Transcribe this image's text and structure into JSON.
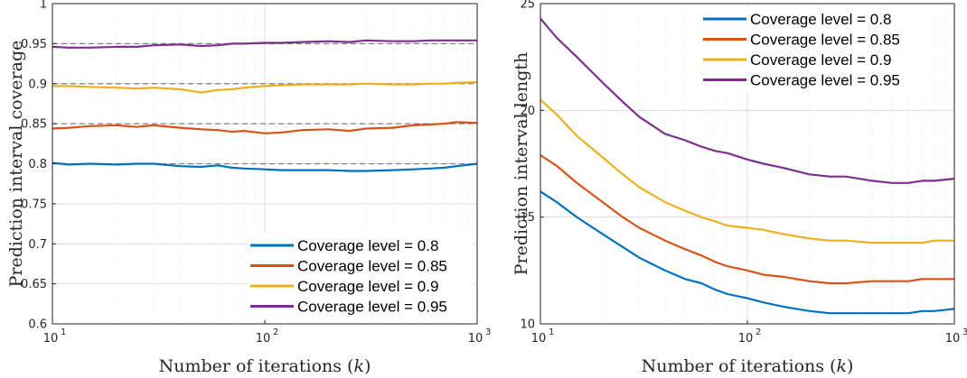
{
  "colors": {
    "blue": "#0072BD",
    "orange": "#D95319",
    "yellow": "#EDB120",
    "purple": "#7E2F8E",
    "target": "#808080"
  },
  "chart_data": [
    {
      "type": "line",
      "xlabel": "Number of iterations (k)",
      "xlabel_parts": {
        "main": "Number of iterations",
        "var": "k"
      },
      "ylabel": "Prediction interval coverage",
      "xscale": "log",
      "xlim": [
        10,
        1000
      ],
      "ylim": [
        0.6,
        1.0
      ],
      "xticks": [
        {
          "value": 10,
          "base": "10",
          "exp": "1"
        },
        {
          "value": 100,
          "base": "10",
          "exp": "2"
        },
        {
          "value": 1000,
          "base": "10",
          "exp": "3"
        }
      ],
      "yticks": [
        {
          "value": 0.6,
          "label": "0.6"
        },
        {
          "value": 0.65,
          "label": "0.65"
        },
        {
          "value": 0.7,
          "label": "0.7"
        },
        {
          "value": 0.75,
          "label": "0.75"
        },
        {
          "value": 0.8,
          "label": "0.8"
        },
        {
          "value": 0.85,
          "label": "0.85"
        },
        {
          "value": 0.9,
          "label": "0.9"
        },
        {
          "value": 0.95,
          "label": "0.95"
        },
        {
          "value": 1.0,
          "label": "1"
        }
      ],
      "grid": true,
      "legend_position": "bottom-right",
      "reference_lines": [
        0.8,
        0.85,
        0.9,
        0.95
      ],
      "series": [
        {
          "name": "Coverage level = 0.8",
          "color": "blue",
          "x": [
            10,
            12,
            15,
            20,
            25,
            30,
            40,
            50,
            60,
            70,
            80,
            100,
            120,
            150,
            200,
            250,
            300,
            400,
            500,
            600,
            700,
            800,
            1000
          ],
          "y": [
            0.801,
            0.799,
            0.8,
            0.799,
            0.8,
            0.8,
            0.797,
            0.796,
            0.798,
            0.795,
            0.794,
            0.793,
            0.792,
            0.792,
            0.792,
            0.791,
            0.791,
            0.792,
            0.793,
            0.794,
            0.795,
            0.797,
            0.8
          ]
        },
        {
          "name": "Coverage level = 0.85",
          "color": "orange",
          "x": [
            10,
            12,
            15,
            20,
            25,
            30,
            40,
            50,
            60,
            70,
            80,
            100,
            120,
            150,
            200,
            250,
            300,
            400,
            500,
            600,
            700,
            800,
            1000
          ],
          "y": [
            0.844,
            0.845,
            0.847,
            0.848,
            0.846,
            0.848,
            0.845,
            0.843,
            0.842,
            0.84,
            0.841,
            0.838,
            0.839,
            0.842,
            0.843,
            0.841,
            0.844,
            0.845,
            0.848,
            0.849,
            0.85,
            0.852,
            0.851
          ]
        },
        {
          "name": "Coverage level = 0.9",
          "color": "yellow",
          "x": [
            10,
            12,
            15,
            20,
            25,
            30,
            40,
            50,
            60,
            70,
            80,
            100,
            120,
            150,
            200,
            250,
            300,
            400,
            500,
            600,
            700,
            800,
            1000
          ],
          "y": [
            0.897,
            0.897,
            0.896,
            0.895,
            0.894,
            0.895,
            0.893,
            0.889,
            0.892,
            0.893,
            0.895,
            0.897,
            0.898,
            0.899,
            0.899,
            0.899,
            0.9,
            0.899,
            0.899,
            0.9,
            0.9,
            0.901,
            0.902
          ]
        },
        {
          "name": "Coverage level = 0.95",
          "color": "purple",
          "x": [
            10,
            12,
            15,
            20,
            25,
            30,
            40,
            50,
            60,
            70,
            80,
            100,
            120,
            150,
            200,
            250,
            300,
            400,
            500,
            600,
            700,
            800,
            1000
          ],
          "y": [
            0.946,
            0.945,
            0.945,
            0.946,
            0.946,
            0.948,
            0.949,
            0.947,
            0.948,
            0.95,
            0.95,
            0.951,
            0.951,
            0.952,
            0.953,
            0.952,
            0.954,
            0.953,
            0.953,
            0.954,
            0.954,
            0.954,
            0.954
          ]
        }
      ]
    },
    {
      "type": "line",
      "xlabel": "Number of iterations (k)",
      "xlabel_parts": {
        "main": "Number of iterations",
        "var": "k"
      },
      "ylabel": "Prediction interval length",
      "xscale": "log",
      "xlim": [
        10,
        1000
      ],
      "ylim": [
        10,
        25
      ],
      "xticks": [
        {
          "value": 10,
          "base": "10",
          "exp": "1"
        },
        {
          "value": 100,
          "base": "10",
          "exp": "2"
        },
        {
          "value": 1000,
          "base": "10",
          "exp": "3"
        }
      ],
      "yticks": [
        {
          "value": 10,
          "label": "10"
        },
        {
          "value": 15,
          "label": "15"
        },
        {
          "value": 20,
          "label": "20"
        },
        {
          "value": 25,
          "label": "25"
        }
      ],
      "grid": true,
      "legend_position": "top-right",
      "series": [
        {
          "name": "Coverage level = 0.8",
          "color": "blue",
          "x": [
            10,
            12,
            15,
            20,
            25,
            30,
            40,
            50,
            60,
            70,
            80,
            100,
            120,
            150,
            200,
            250,
            300,
            400,
            500,
            600,
            700,
            800,
            1000
          ],
          "y": [
            16.2,
            15.7,
            15.0,
            14.2,
            13.6,
            13.1,
            12.5,
            12.1,
            11.9,
            11.6,
            11.4,
            11.2,
            11.0,
            10.8,
            10.6,
            10.5,
            10.5,
            10.5,
            10.5,
            10.5,
            10.6,
            10.6,
            10.7
          ]
        },
        {
          "name": "Coverage level = 0.85",
          "color": "orange",
          "x": [
            10,
            12,
            15,
            20,
            25,
            30,
            40,
            50,
            60,
            70,
            80,
            100,
            120,
            150,
            200,
            250,
            300,
            400,
            500,
            600,
            700,
            800,
            1000
          ],
          "y": [
            17.9,
            17.4,
            16.6,
            15.7,
            15.0,
            14.5,
            13.9,
            13.5,
            13.2,
            12.9,
            12.7,
            12.5,
            12.3,
            12.2,
            12.0,
            11.9,
            11.9,
            12.0,
            12.0,
            12.0,
            12.1,
            12.1,
            12.1
          ]
        },
        {
          "name": "Coverage level = 0.9",
          "color": "yellow",
          "x": [
            10,
            12,
            15,
            20,
            25,
            30,
            40,
            50,
            60,
            70,
            80,
            100,
            120,
            150,
            200,
            250,
            300,
            400,
            500,
            600,
            700,
            800,
            1000
          ],
          "y": [
            20.5,
            19.8,
            18.8,
            17.8,
            17.0,
            16.4,
            15.7,
            15.3,
            15.0,
            14.8,
            14.6,
            14.5,
            14.4,
            14.2,
            14.0,
            13.9,
            13.9,
            13.8,
            13.8,
            13.8,
            13.8,
            13.9,
            13.9
          ]
        },
        {
          "name": "Coverage level = 0.95",
          "color": "purple",
          "x": [
            10,
            12,
            15,
            20,
            25,
            30,
            40,
            50,
            60,
            70,
            80,
            100,
            120,
            150,
            200,
            250,
            300,
            400,
            500,
            600,
            700,
            800,
            1000
          ],
          "y": [
            24.3,
            23.4,
            22.5,
            21.3,
            20.4,
            19.7,
            18.9,
            18.6,
            18.3,
            18.1,
            18.0,
            17.7,
            17.5,
            17.3,
            17.0,
            16.9,
            16.9,
            16.7,
            16.6,
            16.6,
            16.7,
            16.7,
            16.8
          ]
        }
      ]
    }
  ]
}
